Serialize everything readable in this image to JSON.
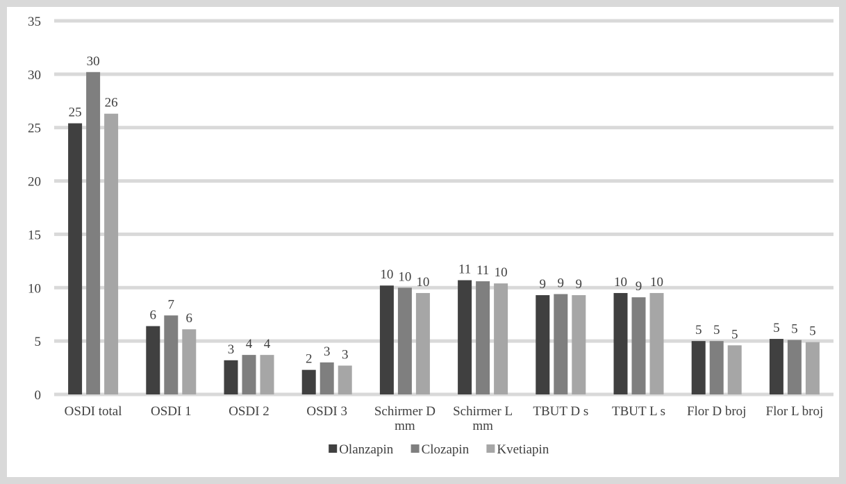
{
  "chart_data": {
    "type": "bar",
    "title": "",
    "xlabel": "",
    "ylabel": "",
    "ylim": [
      0,
      35
    ],
    "yticks": [
      0,
      5,
      10,
      15,
      20,
      25,
      30,
      35
    ],
    "grid": true,
    "legend_position": "bottom",
    "categories": [
      [
        "OSDI total"
      ],
      [
        "OSDI 1"
      ],
      [
        "OSDI 2"
      ],
      [
        "OSDI 3"
      ],
      [
        "Schirmer D",
        "mm"
      ],
      [
        "Schirmer L",
        "mm"
      ],
      [
        "TBUT D s"
      ],
      [
        "TBUT L s"
      ],
      [
        "Flor D broj"
      ],
      [
        "Flor L broj"
      ]
    ],
    "series": [
      {
        "name": "Olanzapin",
        "color": "#404040",
        "values": [
          25.4,
          6.4,
          3.2,
          2.3,
          10.2,
          10.7,
          9.3,
          9.5,
          5.0,
          5.2
        ],
        "labels": [
          "25",
          "6",
          "3",
          "2",
          "10",
          "11",
          "9",
          "10",
          "5",
          "5"
        ]
      },
      {
        "name": "Clozapin",
        "color": "#7f7f7f",
        "values": [
          30.2,
          7.4,
          3.7,
          3.0,
          10.0,
          10.6,
          9.4,
          9.1,
          5.0,
          5.1
        ],
        "labels": [
          "30",
          "7",
          "4",
          "3",
          "10",
          "11",
          "9",
          "9",
          "5",
          "5"
        ]
      },
      {
        "name": "Kvetiapin",
        "color": "#a6a6a6",
        "values": [
          26.3,
          6.1,
          3.7,
          2.7,
          9.5,
          10.4,
          9.3,
          9.5,
          4.6,
          4.9
        ],
        "labels": [
          "26",
          "6",
          "4",
          "3",
          "10",
          "10",
          "9",
          "10",
          "5",
          "5"
        ]
      }
    ],
    "gridline_color": "#d9d9d9",
    "text_color": "#404040"
  }
}
